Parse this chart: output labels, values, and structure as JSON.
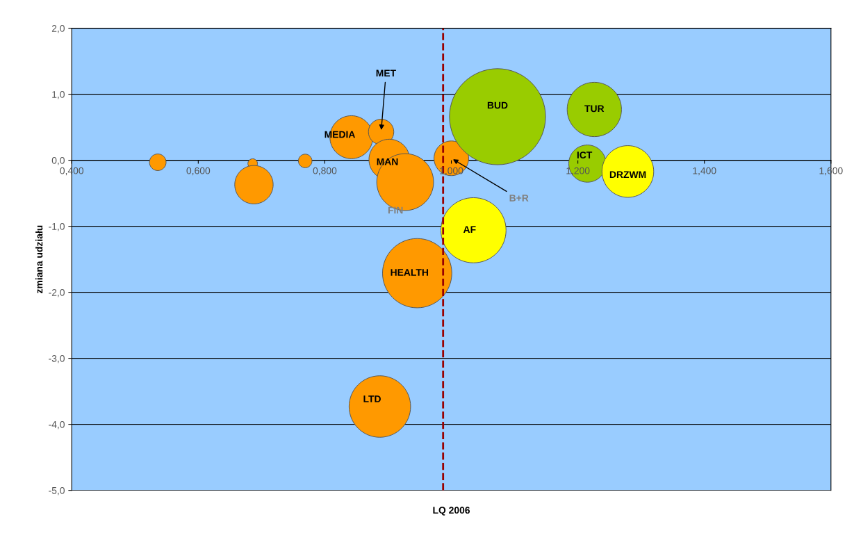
{
  "chart_data": {
    "type": "bubble",
    "xlabel": "LQ 2006",
    "ylabel": "zmiana udziału",
    "x": [
      0.536,
      0.686,
      0.688,
      0.769,
      0.842,
      0.889,
      0.902,
      0.927,
      1.0,
      1.073,
      1.226,
      1.215,
      1.279,
      1.035,
      0.946,
      0.887
    ],
    "values": [
      -0.03,
      -0.05,
      -0.37,
      -0.01,
      0.35,
      0.43,
      0.01,
      -0.33,
      0.03,
      0.66,
      0.77,
      -0.05,
      -0.17,
      -1.06,
      -1.71,
      -3.73
    ],
    "sizes": [
      0.03,
      0.01,
      0.16,
      0.02,
      0.2,
      0.07,
      0.18,
      0.35,
      0.13,
      1,
      0.32,
      0.15,
      0.29,
      0.46,
      0.52,
      0.41
    ],
    "colors": [
      "#ff9900",
      "#ff9900",
      "#ff9900",
      "#ff9900",
      "#ff9900",
      "#ff9900",
      "#ff9900",
      "#ff9900",
      "#ff9900",
      "#99cc00",
      "#99cc00",
      "#99cc00",
      "#ffff00",
      "#ffff00",
      "#ff9900",
      "#ff9900"
    ],
    "marker": "circle",
    "xlim": [
      0.4,
      1.6
    ],
    "xticks": [
      {
        "value": 0.4,
        "label": "0,400"
      },
      {
        "value": 0.6,
        "label": "0,600"
      },
      {
        "value": 0.8,
        "label": "0,800"
      },
      {
        "value": 1.0,
        "label": "1,000"
      },
      {
        "value": 1.2,
        "label": "1,200"
      },
      {
        "value": 1.4,
        "label": "1,400"
      },
      {
        "value": 1.6,
        "label": "1,600"
      }
    ],
    "ylim": [
      -5,
      2
    ],
    "yticks": [
      {
        "value": -5,
        "label": "-5,0"
      },
      {
        "value": -4,
        "label": "-4,0"
      },
      {
        "value": -3,
        "label": "-3,0"
      },
      {
        "value": -2,
        "label": "-2,0"
      },
      {
        "value": -1,
        "label": "-1,0"
      },
      {
        "value": 0,
        "label": "0,0"
      },
      {
        "value": 1,
        "label": "1,0"
      },
      {
        "value": 2,
        "label": "2,0"
      }
    ],
    "grid": "y",
    "ref_lines": [
      {
        "axis": "x",
        "value": 0.987,
        "color": "#990000",
        "line_style": "dashed"
      }
    ],
    "annotations": [
      {
        "text": "MET",
        "x": 0.889,
        "y": 0.43
      },
      {
        "text": "MEDIA",
        "x": 0.842,
        "y": 0.35
      },
      {
        "text": "MAN",
        "x": 0.902,
        "y": 0.01
      },
      {
        "text": "FIN",
        "x": 0.927,
        "y": -0.33
      },
      {
        "text": "B+R",
        "x": 1.0,
        "y": 0.03
      },
      {
        "text": "BUD",
        "x": 1.073,
        "y": 0.66
      },
      {
        "text": "TUR",
        "x": 1.226,
        "y": 0.77
      },
      {
        "text": "ICT",
        "x": 1.215,
        "y": -0.05
      },
      {
        "text": "DRZWM",
        "x": 1.279,
        "y": -0.17
      },
      {
        "text": "AF",
        "x": 1.035,
        "y": -1.06
      },
      {
        "text": "HEALTH",
        "x": 0.946,
        "y": -1.71
      },
      {
        "text": "LTD",
        "x": 0.887,
        "y": -3.73
      }
    ]
  }
}
